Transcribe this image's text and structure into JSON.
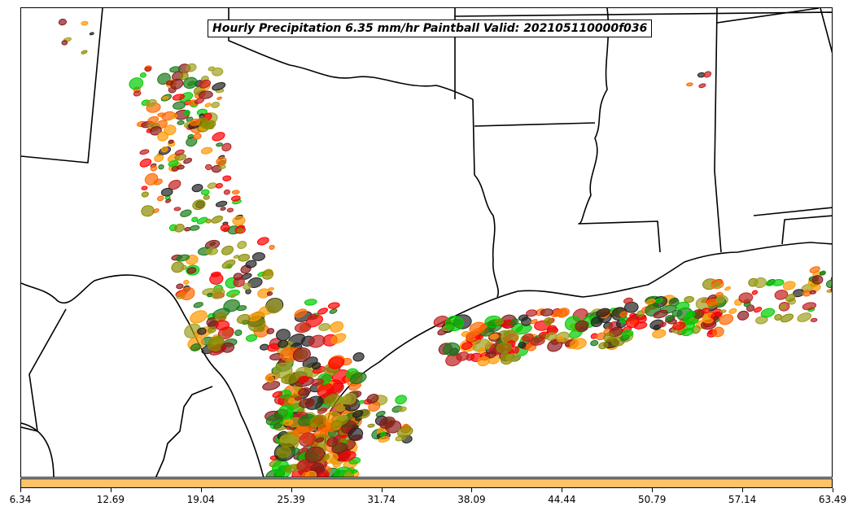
{
  "title": "Hourly Precipitation 6.35 mm/hr Paintball Valid: 202105110000f036",
  "colors": {
    "member_palette": [
      "#ff0000",
      "#ff6a00",
      "#ff9900",
      "#8b1a1a",
      "#1a7a1a",
      "#00cc00",
      "#8b8b00",
      "#a0a020",
      "#222222",
      "#c02020"
    ],
    "boundary": "#000000",
    "colorbar": "#ffc266"
  },
  "colorbar": {
    "ticks": [
      "6.34",
      "12.69",
      "19.04",
      "25.39",
      "31.74",
      "38.09",
      "44.44",
      "50.79",
      "57.14",
      "63.49"
    ]
  },
  "chart_data": {
    "type": "map",
    "title": "Hourly Precipitation 6.35 mm/hr Paintball Valid: 202105110000f036",
    "threshold_mm_per_hr": 6.35,
    "valid": "202105110000f036",
    "colorbar_range": [
      6.34,
      63.49
    ],
    "colorbar_ticks": [
      6.34,
      12.69,
      19.04,
      25.39,
      31.74,
      38.09,
      44.44,
      50.79,
      57.14,
      63.49
    ]
  }
}
